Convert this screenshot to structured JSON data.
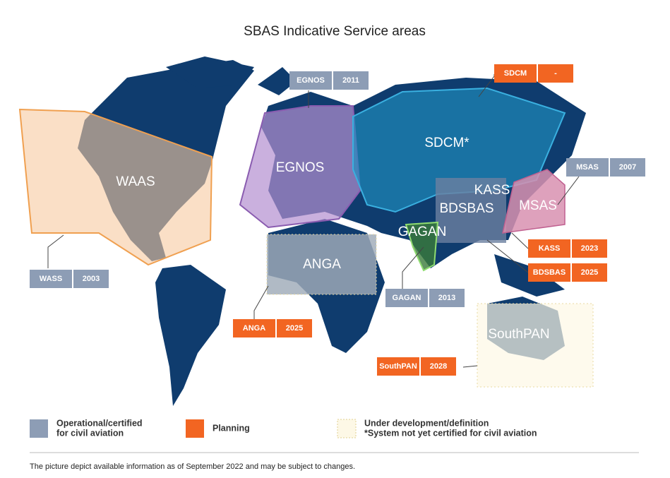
{
  "title": "SBAS Indicative Service areas",
  "regions": [
    {
      "label": "WAAS"
    },
    {
      "label": "EGNOS"
    },
    {
      "label": "SDCM*"
    },
    {
      "label": "KASS"
    },
    {
      "label": "BDSBAS"
    },
    {
      "label": "MSAS"
    },
    {
      "label": "GAGAN"
    },
    {
      "label": "ANGA"
    },
    {
      "label": "SouthPAN"
    }
  ],
  "tags": [
    {
      "name": "WASS",
      "year": "2003"
    },
    {
      "name": "EGNOS",
      "year": "2011"
    },
    {
      "name": "SDCM",
      "year": "-"
    },
    {
      "name": "MSAS",
      "year": "2007"
    },
    {
      "name": "KASS",
      "year": "2023"
    },
    {
      "name": "BDSBAS",
      "year": "2025"
    },
    {
      "name": "GAGAN",
      "year": "2013"
    },
    {
      "name": "ANGA",
      "year": "2025"
    },
    {
      "name": "SouthPAN",
      "year": "2028"
    }
  ],
  "legend": [
    {
      "lines": [
        "Operational/certified",
        "for civil aviation"
      ]
    },
    {
      "lines": [
        "Planning"
      ]
    },
    {
      "lines": [
        "Under development/definition",
        "*System not yet certified for civil aviation"
      ]
    }
  ],
  "footnote": "The picture depict available information as of September 2022 and may be subject to changes."
}
